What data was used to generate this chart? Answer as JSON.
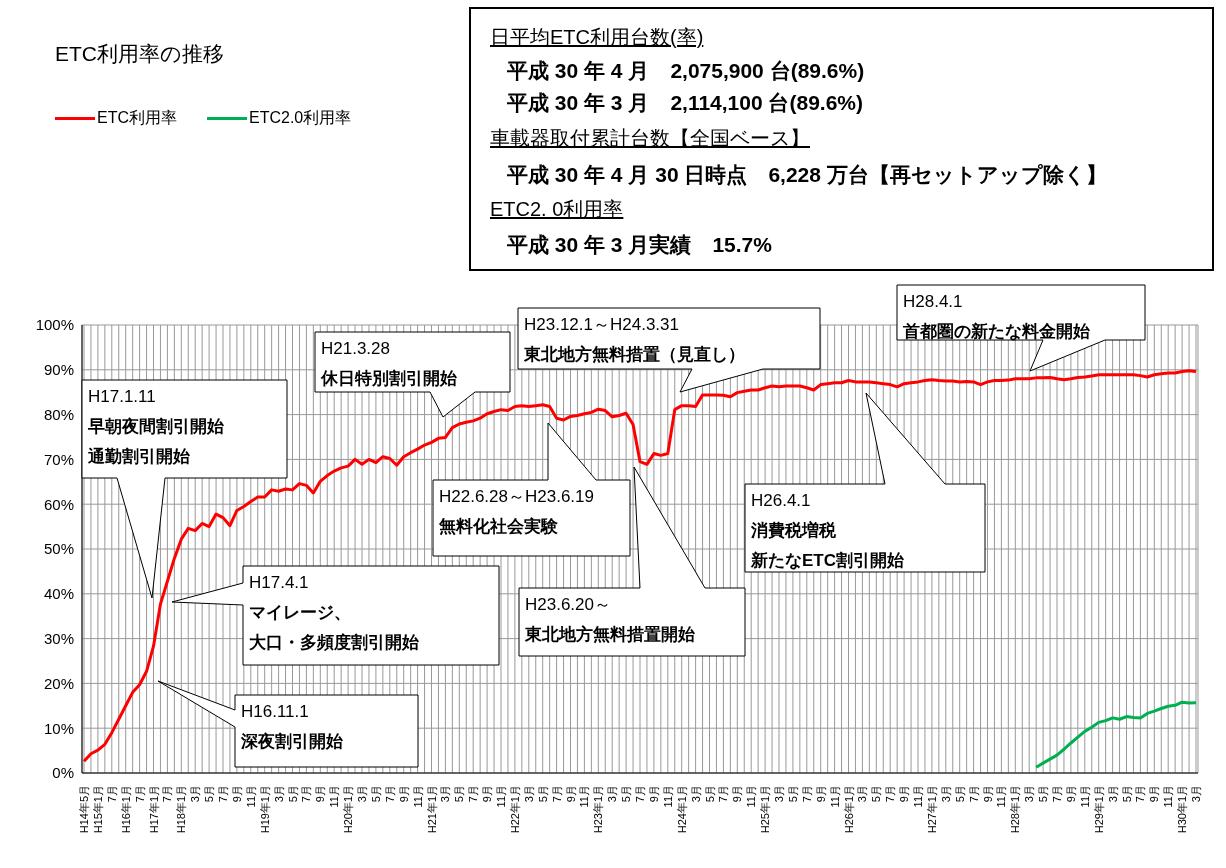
{
  "chart_data": {
    "type": "line",
    "title": "ETC利用率の推移",
    "categories": [
      "H14年5月",
      null,
      "H15年1月",
      null,
      "7月",
      null,
      "H16年1月",
      null,
      "7月",
      null,
      "H17年1月",
      null,
      "7月",
      null,
      "H18年1月",
      null,
      "3月",
      null,
      "5月",
      null,
      "7月",
      null,
      "9月",
      null,
      "11月",
      null,
      "H19年1月",
      null,
      "3月",
      null,
      "5月",
      null,
      "7月",
      null,
      "9月",
      null,
      "11月",
      null,
      "H20年1月",
      null,
      "3月",
      null,
      "5月",
      null,
      "7月",
      null,
      "9月",
      null,
      "11月",
      null,
      "H21年1月",
      null,
      "3月",
      null,
      "5月",
      null,
      "7月",
      null,
      "9月",
      null,
      "11月",
      null,
      "H22年1月",
      null,
      "3月",
      null,
      "5月",
      null,
      "7月",
      null,
      "9月",
      null,
      "11月",
      null,
      "H23年1月",
      null,
      "3月",
      null,
      "5月",
      null,
      "7月",
      null,
      "9月",
      null,
      "11月",
      null,
      "H24年1月",
      null,
      "3月",
      null,
      "5月",
      null,
      "7月",
      null,
      "9月",
      null,
      "11月",
      null,
      "H25年1月",
      null,
      "3月",
      null,
      "5月",
      null,
      "7月",
      null,
      "9月",
      null,
      "11月",
      null,
      "H26年1月",
      null,
      "3月",
      null,
      "5月",
      null,
      "7月",
      null,
      "9月",
      null,
      "11月",
      null,
      "H27年1月",
      null,
      "3月",
      null,
      "5月",
      null,
      "7月",
      null,
      "9月",
      null,
      "11月",
      null,
      "H28年1月",
      null,
      "3月",
      null,
      "5月",
      null,
      "7月",
      null,
      "9月",
      null,
      "11月",
      null,
      "H29年1月",
      null,
      "3月",
      null,
      "5月",
      null,
      "7月",
      null,
      "9月",
      null,
      "11月",
      null,
      "H30年1月",
      null,
      "3月"
    ],
    "series": [
      {
        "name": "ETC利用率",
        "color": "#ff0000",
        "values": [
          2.6,
          4.3,
          5.1,
          6.4,
          9.0,
          12.0,
          15.0,
          18.0,
          19.7,
          22.7,
          28.3,
          37.7,
          42.8,
          47.9,
          52.2,
          54.6,
          54.1,
          55.7,
          55.0,
          57.8,
          57.0,
          55.2,
          58.6,
          59.5,
          60.6,
          61.6,
          61.6,
          63.2,
          62.9,
          63.4,
          63.2,
          64.6,
          64.2,
          62.5,
          65.1,
          66.4,
          67.4,
          68.1,
          68.5,
          70.0,
          68.9,
          70.0,
          69.3,
          70.6,
          70.2,
          68.7,
          70.6,
          71.5,
          72.3,
          73.2,
          73.8,
          74.7,
          74.9,
          77.1,
          77.9,
          78.3,
          78.6,
          79.2,
          80.2,
          80.7,
          81.1,
          80.9,
          81.8,
          82.0,
          81.8,
          82.0,
          82.2,
          81.8,
          79.2,
          78.8,
          79.6,
          79.8,
          80.2,
          80.5,
          81.2,
          80.9,
          79.5,
          79.8,
          80.3,
          77.8,
          69.5,
          68.9,
          71.3,
          70.9,
          71.3,
          81.1,
          82.0,
          82.0,
          81.8,
          84.4,
          84.4,
          84.4,
          84.3,
          84.0,
          84.9,
          85.2,
          85.5,
          85.5,
          86.0,
          86.4,
          86.2,
          86.4,
          86.4,
          86.4,
          86.0,
          85.5,
          86.7,
          86.9,
          87.1,
          87.1,
          87.6,
          87.3,
          87.3,
          87.3,
          87.1,
          86.9,
          86.7,
          86.2,
          86.9,
          87.1,
          87.3,
          87.6,
          87.8,
          87.6,
          87.5,
          87.5,
          87.3,
          87.4,
          87.3,
          86.7,
          87.3,
          87.6,
          87.6,
          87.7,
          88.0,
          88.0,
          88.0,
          88.2,
          88.2,
          88.3,
          88.0,
          87.8,
          88.0,
          88.3,
          88.4,
          88.6,
          88.9,
          88.9,
          88.9,
          88.9,
          88.9,
          88.9,
          88.7,
          88.4,
          88.9,
          89.1,
          89.3,
          89.3,
          89.6,
          89.8,
          89.6
        ]
      },
      {
        "name": "ETC2.0利用率",
        "color": "#00b050",
        "values": [
          null,
          null,
          null,
          null,
          null,
          null,
          null,
          null,
          null,
          null,
          null,
          null,
          null,
          null,
          null,
          null,
          null,
          null,
          null,
          null,
          null,
          null,
          null,
          null,
          null,
          null,
          null,
          null,
          null,
          null,
          null,
          null,
          null,
          null,
          null,
          null,
          null,
          null,
          null,
          null,
          null,
          null,
          null,
          null,
          null,
          null,
          null,
          null,
          null,
          null,
          null,
          null,
          null,
          null,
          null,
          null,
          null,
          null,
          null,
          null,
          null,
          null,
          null,
          null,
          null,
          null,
          null,
          null,
          null,
          null,
          null,
          null,
          null,
          null,
          null,
          null,
          null,
          null,
          null,
          null,
          null,
          null,
          null,
          null,
          null,
          null,
          null,
          null,
          null,
          null,
          null,
          null,
          null,
          null,
          null,
          null,
          null,
          null,
          null,
          null,
          null,
          null,
          null,
          null,
          null,
          null,
          null,
          null,
          null,
          null,
          null,
          null,
          null,
          null,
          null,
          null,
          null,
          null,
          null,
          null,
          null,
          null,
          null,
          null,
          null,
          null,
          null,
          null,
          null,
          null,
          null,
          null,
          null,
          null,
          null,
          null,
          null,
          1.3,
          2.2,
          3.1,
          4.0,
          5.3,
          6.7,
          8.0,
          9.3,
          10.2,
          11.3,
          11.7,
          12.3,
          12.0,
          12.6,
          12.4,
          12.3,
          13.3,
          13.8,
          14.4,
          14.9,
          15.1,
          15.8,
          15.6,
          15.7
        ]
      }
    ],
    "ylim": [
      0,
      100
    ],
    "yticks": [
      {
        "value": 0,
        "label": "0%"
      },
      {
        "value": 10,
        "label": "10%"
      },
      {
        "value": 20,
        "label": "20%"
      },
      {
        "value": 30,
        "label": "30%"
      },
      {
        "value": 40,
        "label": "40%"
      },
      {
        "value": 50,
        "label": "50%"
      },
      {
        "value": 60,
        "label": "60%"
      },
      {
        "value": 70,
        "label": "70%"
      },
      {
        "value": 80,
        "label": "80%"
      },
      {
        "value": 90,
        "label": "90%"
      },
      {
        "value": 100,
        "label": "100%"
      }
    ],
    "grid": true,
    "legend": "top left",
    "annotations": [
      "H17.1.11",
      "早朝夜間割引開始",
      "通勤割引開始",
      "H16.11.1",
      "深夜割引開始",
      "H17.4.1",
      "マイレージ、",
      "大口・多頻度割引開始",
      "H21.3.28",
      "休日特別割引開始",
      "H22.6.28～H23.6.19",
      "無料化社会実験",
      "H23.6.20～",
      "東北地方無料措置開始",
      "H23.12.1～H24.3.31",
      "東北地方無料措置（見直し）",
      "H26.4.1",
      "消費税増税",
      "新たなETC割引開始",
      "H28.4.1",
      "首都圏の新たな料金開始",
      "日平均ETC利用台数(率)",
      "平成 30 年 4 月　2,075,900 台(89.6%)",
      "平成 30 年 3 月　2,114,100 台(89.6%)",
      "車載器取付累計台数【全国ベース】",
      "平成 30 年 4 月 30 日時点　6,228 万台【再セットアップ除く】",
      "ETC2. 0利用率",
      "平成 30 年 3 月実績　15.7%"
    ]
  }
}
